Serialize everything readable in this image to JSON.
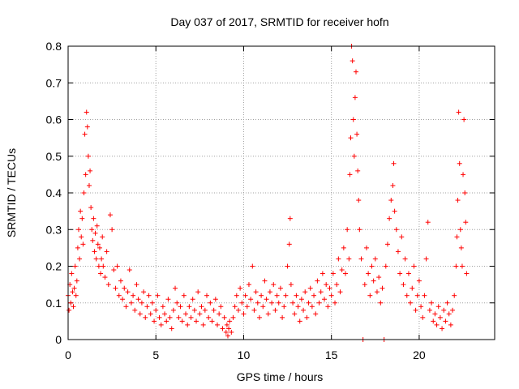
{
  "chart_data": {
    "type": "scatter",
    "title": "Day 037 of 2017, SRMTID for receiver hofn",
    "xlabel": "GPS time / hours",
    "ylabel": "SRMTID / TECUs",
    "xlim": [
      0,
      24.3
    ],
    "ylim": [
      0,
      0.8
    ],
    "grid": true,
    "marker": "+",
    "color": "#ff0000",
    "xticks": [
      0,
      5,
      10,
      15,
      20
    ],
    "xtick_labels": [
      "0",
      "5",
      "10",
      "15",
      "20"
    ],
    "yticks": [
      0,
      0.1,
      0.2,
      0.3,
      0.4,
      0.5,
      0.6,
      0.7,
      0.8
    ],
    "ytick_labels": [
      "0",
      "0.1",
      "0.2",
      "0.3",
      "0.4",
      "0.5",
      "0.6",
      "0.7",
      "0.8"
    ],
    "series": [
      {
        "name": "SRMTID",
        "points": [
          [
            0.0,
            0.12
          ],
          [
            0.05,
            0.08
          ],
          [
            0.1,
            0.15
          ],
          [
            0.15,
            0.1
          ],
          [
            0.2,
            0.18
          ],
          [
            0.25,
            0.13
          ],
          [
            0.3,
            0.09
          ],
          [
            0.35,
            0.14
          ],
          [
            0.4,
            0.2
          ],
          [
            0.45,
            0.12
          ],
          [
            0.5,
            0.16
          ],
          [
            0.55,
            0.25
          ],
          [
            0.6,
            0.3
          ],
          [
            0.65,
            0.22
          ],
          [
            0.7,
            0.35
          ],
          [
            0.75,
            0.28
          ],
          [
            0.8,
            0.33
          ],
          [
            0.85,
            0.26
          ],
          [
            0.9,
            0.4
          ],
          [
            0.95,
            0.56
          ],
          [
            1.0,
            0.45
          ],
          [
            1.05,
            0.62
          ],
          [
            1.1,
            0.58
          ],
          [
            1.15,
            0.5
          ],
          [
            1.2,
            0.42
          ],
          [
            1.25,
            0.46
          ],
          [
            1.3,
            0.36
          ],
          [
            1.35,
            0.3
          ],
          [
            1.4,
            0.27
          ],
          [
            1.45,
            0.33
          ],
          [
            1.5,
            0.24
          ],
          [
            1.55,
            0.29
          ],
          [
            1.6,
            0.22
          ],
          [
            1.65,
            0.31
          ],
          [
            1.7,
            0.26
          ],
          [
            1.75,
            0.2
          ],
          [
            1.8,
            0.25
          ],
          [
            1.85,
            0.18
          ],
          [
            1.9,
            0.22
          ],
          [
            1.95,
            0.28
          ],
          [
            2.0,
            0.2
          ],
          [
            2.1,
            0.17
          ],
          [
            2.2,
            0.24
          ],
          [
            2.3,
            0.15
          ],
          [
            2.4,
            0.34
          ],
          [
            2.5,
            0.3
          ],
          [
            2.6,
            0.19
          ],
          [
            2.7,
            0.14
          ],
          [
            2.8,
            0.2
          ],
          [
            2.9,
            0.12
          ],
          [
            3.0,
            0.16
          ],
          [
            3.1,
            0.11
          ],
          [
            3.2,
            0.14
          ],
          [
            3.3,
            0.09
          ],
          [
            3.4,
            0.13
          ],
          [
            3.5,
            0.19
          ],
          [
            3.6,
            0.1
          ],
          [
            3.7,
            0.12
          ],
          [
            3.8,
            0.08
          ],
          [
            3.9,
            0.15
          ],
          [
            4.0,
            0.11
          ],
          [
            4.1,
            0.07
          ],
          [
            4.2,
            0.1
          ],
          [
            4.3,
            0.13
          ],
          [
            4.4,
            0.06
          ],
          [
            4.5,
            0.09
          ],
          [
            4.6,
            0.12
          ],
          [
            4.7,
            0.07
          ],
          [
            4.8,
            0.1
          ],
          [
            4.9,
            0.05
          ],
          [
            5.0,
            0.08
          ],
          [
            5.1,
            0.12
          ],
          [
            5.2,
            0.06
          ],
          [
            5.3,
            0.04
          ],
          [
            5.4,
            0.09
          ],
          [
            5.5,
            0.07
          ],
          [
            5.6,
            0.05
          ],
          [
            5.7,
            0.11
          ],
          [
            5.8,
            0.06
          ],
          [
            5.9,
            0.03
          ],
          [
            6.0,
            0.08
          ],
          [
            6.1,
            0.14
          ],
          [
            6.2,
            0.1
          ],
          [
            6.3,
            0.06
          ],
          [
            6.4,
            0.09
          ],
          [
            6.5,
            0.05
          ],
          [
            6.6,
            0.12
          ],
          [
            6.7,
            0.07
          ],
          [
            6.8,
            0.04
          ],
          [
            6.9,
            0.09
          ],
          [
            7.0,
            0.06
          ],
          [
            7.1,
            0.11
          ],
          [
            7.2,
            0.08
          ],
          [
            7.3,
            0.05
          ],
          [
            7.4,
            0.13
          ],
          [
            7.5,
            0.07
          ],
          [
            7.6,
            0.09
          ],
          [
            7.7,
            0.04
          ],
          [
            7.8,
            0.08
          ],
          [
            7.9,
            0.12
          ],
          [
            8.0,
            0.06
          ],
          [
            8.1,
            0.1
          ],
          [
            8.2,
            0.05
          ],
          [
            8.3,
            0.08
          ],
          [
            8.4,
            0.11
          ],
          [
            8.5,
            0.04
          ],
          [
            8.6,
            0.07
          ],
          [
            8.7,
            0.09
          ],
          [
            8.8,
            0.03
          ],
          [
            8.9,
            0.06
          ],
          [
            9.0,
            0.02
          ],
          [
            9.05,
            0.04
          ],
          [
            9.1,
            0.01
          ],
          [
            9.15,
            0.03
          ],
          [
            9.2,
            0.05
          ],
          [
            9.3,
            0.02
          ],
          [
            9.4,
            0.06
          ],
          [
            9.5,
            0.09
          ],
          [
            9.6,
            0.12
          ],
          [
            9.7,
            0.08
          ],
          [
            9.8,
            0.14
          ],
          [
            9.9,
            0.1
          ],
          [
            10.0,
            0.07
          ],
          [
            10.1,
            0.12
          ],
          [
            10.2,
            0.09
          ],
          [
            10.3,
            0.15
          ],
          [
            10.4,
            0.11
          ],
          [
            10.5,
            0.2
          ],
          [
            10.6,
            0.08
          ],
          [
            10.7,
            0.13
          ],
          [
            10.8,
            0.1
          ],
          [
            10.9,
            0.06
          ],
          [
            11.0,
            0.12
          ],
          [
            11.1,
            0.09
          ],
          [
            11.2,
            0.16
          ],
          [
            11.3,
            0.11
          ],
          [
            11.4,
            0.07
          ],
          [
            11.5,
            0.13
          ],
          [
            11.6,
            0.1
          ],
          [
            11.7,
            0.15
          ],
          [
            11.8,
            0.08
          ],
          [
            11.9,
            0.12
          ],
          [
            12.0,
            0.1
          ],
          [
            12.1,
            0.14
          ],
          [
            12.2,
            0.06
          ],
          [
            12.3,
            0.09
          ],
          [
            12.4,
            0.12
          ],
          [
            12.5,
            0.2
          ],
          [
            12.6,
            0.26
          ],
          [
            12.65,
            0.33
          ],
          [
            12.7,
            0.15
          ],
          [
            12.8,
            0.1
          ],
          [
            12.9,
            0.07
          ],
          [
            13.0,
            0.12
          ],
          [
            13.1,
            0.09
          ],
          [
            13.2,
            0.05
          ],
          [
            13.3,
            0.11
          ],
          [
            13.4,
            0.08
          ],
          [
            13.5,
            0.13
          ],
          [
            13.6,
            0.06
          ],
          [
            13.7,
            0.1
          ],
          [
            13.8,
            0.14
          ],
          [
            13.9,
            0.09
          ],
          [
            14.0,
            0.12
          ],
          [
            14.1,
            0.07
          ],
          [
            14.2,
            0.16
          ],
          [
            14.3,
            0.1
          ],
          [
            14.4,
            0.13
          ],
          [
            14.5,
            0.18
          ],
          [
            14.6,
            0.11
          ],
          [
            14.7,
            0.15
          ],
          [
            14.8,
            0.09
          ],
          [
            14.9,
            0.14
          ],
          [
            15.0,
            0.12
          ],
          [
            15.1,
            0.18
          ],
          [
            15.2,
            0.1
          ],
          [
            15.3,
            0.15
          ],
          [
            15.4,
            0.22
          ],
          [
            15.5,
            0.13
          ],
          [
            15.6,
            0.19
          ],
          [
            15.7,
            0.25
          ],
          [
            15.8,
            0.18
          ],
          [
            15.9,
            0.3
          ],
          [
            16.0,
            0.22
          ],
          [
            16.05,
            0.45
          ],
          [
            16.1,
            0.55
          ],
          [
            16.15,
            0.8
          ],
          [
            16.2,
            0.76
          ],
          [
            16.25,
            0.6
          ],
          [
            16.3,
            0.5
          ],
          [
            16.35,
            0.66
          ],
          [
            16.4,
            0.73
          ],
          [
            16.45,
            0.56
          ],
          [
            16.5,
            0.46
          ],
          [
            16.55,
            0.38
          ],
          [
            16.6,
            0.3
          ],
          [
            16.7,
            0.22
          ],
          [
            16.8,
            0.0
          ],
          [
            16.9,
            0.15
          ],
          [
            17.0,
            0.25
          ],
          [
            17.1,
            0.18
          ],
          [
            17.2,
            0.12
          ],
          [
            17.3,
            0.2
          ],
          [
            17.4,
            0.16
          ],
          [
            17.5,
            0.22
          ],
          [
            17.6,
            0.13
          ],
          [
            17.7,
            0.17
          ],
          [
            17.8,
            0.1
          ],
          [
            17.9,
            0.14
          ],
          [
            18.0,
            0.0
          ],
          [
            18.1,
            0.2
          ],
          [
            18.2,
            0.26
          ],
          [
            18.3,
            0.33
          ],
          [
            18.4,
            0.38
          ],
          [
            18.5,
            0.42
          ],
          [
            18.55,
            0.48
          ],
          [
            18.6,
            0.35
          ],
          [
            18.7,
            0.3
          ],
          [
            18.8,
            0.24
          ],
          [
            18.9,
            0.18
          ],
          [
            19.0,
            0.28
          ],
          [
            19.1,
            0.15
          ],
          [
            19.2,
            0.22
          ],
          [
            19.3,
            0.12
          ],
          [
            19.4,
            0.18
          ],
          [
            19.5,
            0.1
          ],
          [
            19.6,
            0.14
          ],
          [
            19.7,
            0.2
          ],
          [
            19.8,
            0.08
          ],
          [
            19.9,
            0.12
          ],
          [
            20.0,
            0.16
          ],
          [
            20.1,
            0.09
          ],
          [
            20.2,
            0.06
          ],
          [
            20.3,
            0.12
          ],
          [
            20.4,
            0.22
          ],
          [
            20.5,
            0.32
          ],
          [
            20.6,
            0.08
          ],
          [
            20.7,
            0.1
          ],
          [
            20.8,
            0.05
          ],
          [
            20.9,
            0.07
          ],
          [
            21.0,
            0.04
          ],
          [
            21.1,
            0.09
          ],
          [
            21.2,
            0.06
          ],
          [
            21.3,
            0.03
          ],
          [
            21.4,
            0.08
          ],
          [
            21.5,
            0.05
          ],
          [
            21.6,
            0.1
          ],
          [
            21.7,
            0.07
          ],
          [
            21.8,
            0.04
          ],
          [
            21.9,
            0.08
          ],
          [
            22.0,
            0.12
          ],
          [
            22.1,
            0.2
          ],
          [
            22.15,
            0.28
          ],
          [
            22.2,
            0.38
          ],
          [
            22.25,
            0.62
          ],
          [
            22.3,
            0.48
          ],
          [
            22.35,
            0.3
          ],
          [
            22.4,
            0.25
          ],
          [
            22.45,
            0.2
          ],
          [
            22.5,
            0.45
          ],
          [
            22.55,
            0.6
          ],
          [
            22.6,
            0.4
          ],
          [
            22.65,
            0.32
          ],
          [
            22.7,
            0.18
          ]
        ]
      }
    ]
  }
}
